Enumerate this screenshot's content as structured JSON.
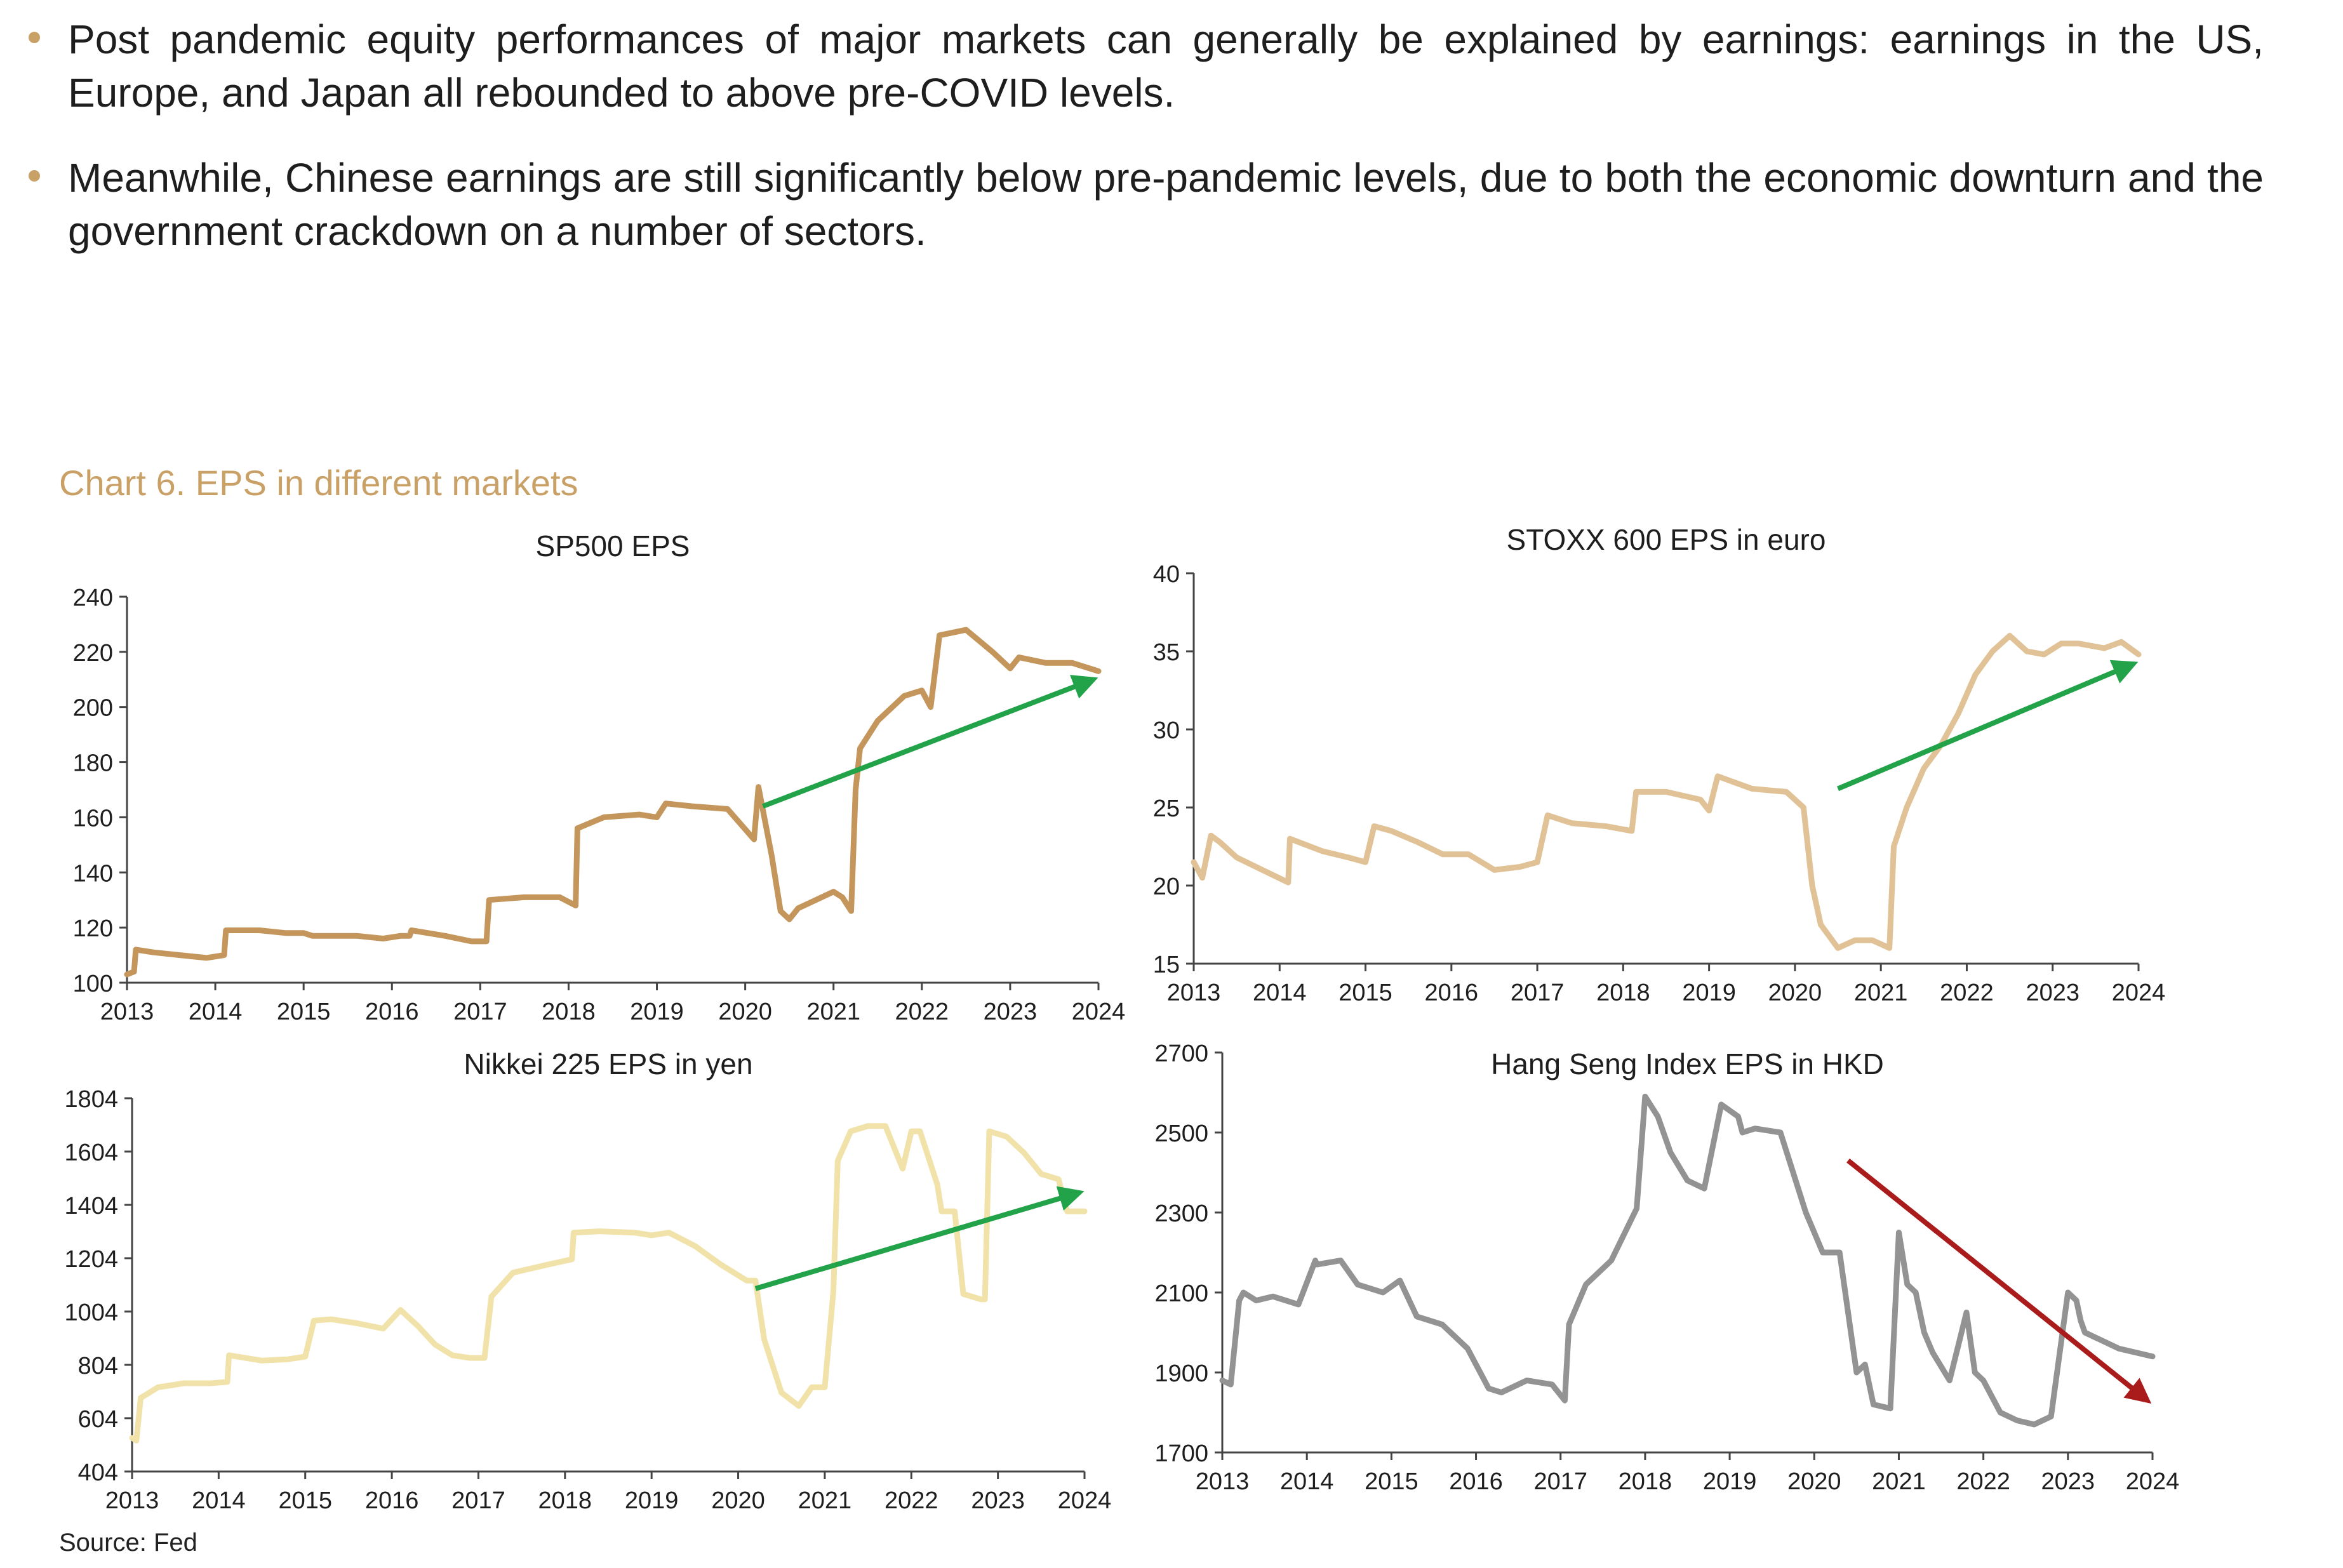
{
  "bullets": [
    "Post pandemic equity performances of major markets can generally be explained by earnings: earnings in the US, Europe, and Japan all rebounded to above pre-COVID levels.",
    "Meanwhile, Chinese earnings are still significantly below pre-pandemic levels, due to both the economic downturn and the government crackdown on a number of sectors."
  ],
  "chart_heading": "Chart 6. EPS in different markets",
  "source": "Source: Fed",
  "colors": {
    "gold": "#c9a066",
    "green": "#22a34a",
    "red": "#aa1b1b"
  },
  "chart_data": [
    {
      "type": "line",
      "title": "SP500 EPS",
      "ylim": [
        100,
        240
      ],
      "yticks": [
        100,
        120,
        140,
        160,
        180,
        200,
        220,
        240
      ],
      "xticks": [
        "2013",
        "2014",
        "2015",
        "2016",
        "2017",
        "2018",
        "2019",
        "2020",
        "2021",
        "2022",
        "2023",
        "2024"
      ],
      "xlim": [
        2013,
        2024
      ],
      "color": "#c4965c",
      "series": [
        {
          "name": "SP500 EPS",
          "x": [
            2013.0,
            2013.08,
            2013.1,
            2013.3,
            2013.6,
            2013.9,
            2014.1,
            2014.12,
            2014.5,
            2014.8,
            2015.0,
            2015.1,
            2015.3,
            2015.6,
            2015.9,
            2016.1,
            2016.2,
            2016.22,
            2016.6,
            2016.9,
            2017.07,
            2017.1,
            2017.5,
            2017.9,
            2018.08,
            2018.1,
            2018.4,
            2018.8,
            2019.0,
            2019.1,
            2019.4,
            2019.8,
            2020.1,
            2020.15,
            2020.3,
            2020.4,
            2020.5,
            2020.6,
            2020.8,
            2021.0,
            2021.1,
            2021.2,
            2021.25,
            2021.3,
            2021.5,
            2021.8,
            2022.0,
            2022.1,
            2022.2,
            2022.5,
            2022.8,
            2023.0,
            2023.1,
            2023.4,
            2023.7,
            2024.0
          ],
          "values": [
            103,
            104,
            112,
            111,
            110,
            109,
            110,
            119,
            119,
            118,
            118,
            117,
            117,
            117,
            116,
            117,
            117,
            119,
            117,
            115,
            115,
            130,
            131,
            131,
            128,
            156,
            160,
            161,
            160,
            165,
            164,
            163,
            152,
            171,
            146,
            126,
            123,
            127,
            130,
            133,
            131,
            126,
            170,
            185,
            195,
            204,
            206,
            200,
            226,
            228,
            220,
            214,
            218,
            216,
            216,
            213
          ]
        }
      ],
      "trend": {
        "x": [
          2020.2,
          2024.0
        ],
        "values": [
          164,
          210
        ],
        "color": "#22a34a"
      }
    },
    {
      "type": "line",
      "title": "STOXX 600 EPS in euro",
      "ylim": [
        15,
        40
      ],
      "yticks": [
        15,
        20,
        25,
        30,
        35,
        40
      ],
      "xticks": [
        "2013",
        "2014",
        "2015",
        "2016",
        "2017",
        "2018",
        "2019",
        "2020",
        "2021",
        "2022",
        "2023",
        "2024"
      ],
      "xlim": [
        2013,
        2024
      ],
      "color": "#e0c296",
      "series": [
        {
          "name": "STOXX 600 EPS",
          "x": [
            2013.0,
            2013.1,
            2013.2,
            2013.3,
            2013.5,
            2013.8,
            2014.1,
            2014.12,
            2014.5,
            2014.8,
            2015.0,
            2015.1,
            2015.3,
            2015.6,
            2015.9,
            2016.2,
            2016.5,
            2016.8,
            2017.0,
            2017.12,
            2017.4,
            2017.8,
            2018.1,
            2018.15,
            2018.5,
            2018.9,
            2019.0,
            2019.1,
            2019.5,
            2019.9,
            2020.1,
            2020.2,
            2020.3,
            2020.5,
            2020.7,
            2020.9,
            2021.1,
            2021.15,
            2021.3,
            2021.5,
            2021.7,
            2021.9,
            2022.1,
            2022.3,
            2022.5,
            2022.7,
            2022.9,
            2023.1,
            2023.3,
            2023.6,
            2023.8,
            2024.0
          ],
          "values": [
            21.5,
            20.5,
            23.2,
            22.8,
            21.8,
            21.0,
            20.2,
            23.0,
            22.2,
            21.8,
            21.5,
            23.8,
            23.5,
            22.8,
            22.0,
            22.0,
            21.0,
            21.2,
            21.5,
            24.5,
            24.0,
            23.8,
            23.5,
            26.0,
            26.0,
            25.5,
            24.8,
            27.0,
            26.2,
            26.0,
            25.0,
            20.0,
            17.5,
            16.0,
            16.5,
            16.5,
            16.0,
            22.5,
            25.0,
            27.5,
            29.0,
            31.0,
            33.5,
            35.0,
            36.0,
            35.0,
            34.8,
            35.5,
            35.5,
            35.2,
            35.6,
            34.8
          ]
        }
      ],
      "trend": {
        "x": [
          2020.5,
          2024.0
        ],
        "values": [
          26.2,
          34.2
        ],
        "color": "#22a34a"
      }
    },
    {
      "type": "line",
      "title": "Nikkei 225 EPS in yen",
      "ylim": [
        404,
        1804
      ],
      "yticks": [
        404,
        604,
        804,
        1004,
        1204,
        1404,
        1604,
        1804
      ],
      "xticks": [
        "2013",
        "2014",
        "2015",
        "2016",
        "2017",
        "2018",
        "2019",
        "2020",
        "2021",
        "2022",
        "2023",
        "2024"
      ],
      "xlim": [
        2013,
        2024
      ],
      "color": "#f1e2aa",
      "series": [
        {
          "name": "Nikkei 225 EPS",
          "x": [
            2013.0,
            2013.05,
            2013.1,
            2013.3,
            2013.6,
            2013.9,
            2014.1,
            2014.12,
            2014.5,
            2014.8,
            2015.0,
            2015.1,
            2015.3,
            2015.6,
            2015.9,
            2016.1,
            2016.3,
            2016.5,
            2016.7,
            2016.9,
            2017.07,
            2017.15,
            2017.4,
            2017.8,
            2018.08,
            2018.1,
            2018.4,
            2018.8,
            2019.0,
            2019.2,
            2019.5,
            2019.8,
            2020.1,
            2020.2,
            2020.3,
            2020.5,
            2020.7,
            2020.85,
            2021.0,
            2021.1,
            2021.15,
            2021.3,
            2021.5,
            2021.7,
            2021.9,
            2022.0,
            2022.1,
            2022.3,
            2022.35,
            2022.5,
            2022.6,
            2022.8,
            2022.85,
            2022.9,
            2023.1,
            2023.3,
            2023.5,
            2023.7,
            2023.8,
            2024.0
          ],
          "values": [
            530,
            520,
            680,
            720,
            735,
            735,
            740,
            840,
            820,
            825,
            835,
            970,
            975,
            960,
            940,
            1010,
            950,
            880,
            840,
            830,
            830,
            1060,
            1150,
            1180,
            1200,
            1300,
            1305,
            1300,
            1290,
            1300,
            1250,
            1180,
            1120,
            1120,
            900,
            700,
            650,
            720,
            720,
            1080,
            1570,
            1680,
            1700,
            1700,
            1540,
            1680,
            1680,
            1480,
            1380,
            1380,
            1070,
            1050,
            1050,
            1680,
            1660,
            1600,
            1520,
            1500,
            1380,
            1380
          ]
        }
      ],
      "trend": {
        "x": [
          2020.2,
          2024.0
        ],
        "values": [
          1090,
          1450
        ],
        "color": "#22a34a"
      }
    },
    {
      "type": "line",
      "title": "Hang Seng Index EPS in HKD",
      "ylim": [
        1700,
        2700
      ],
      "yticks": [
        1700,
        1900,
        2100,
        2300,
        2500,
        2700
      ],
      "xticks": [
        "2013",
        "2014",
        "2015",
        "2016",
        "2017",
        "2018",
        "2019",
        "2020",
        "2021",
        "2022",
        "2023",
        "2024"
      ],
      "xlim": [
        2013,
        2024
      ],
      "color": "#939393",
      "series": [
        {
          "name": "Hang Seng EPS",
          "x": [
            2013.0,
            2013.1,
            2013.2,
            2013.25,
            2013.4,
            2013.6,
            2013.9,
            2014.1,
            2014.12,
            2014.4,
            2014.6,
            2014.9,
            2015.1,
            2015.3,
            2015.6,
            2015.9,
            2016.1,
            2016.15,
            2016.3,
            2016.6,
            2016.9,
            2017.05,
            2017.1,
            2017.3,
            2017.6,
            2017.9,
            2018.0,
            2018.15,
            2018.3,
            2018.5,
            2018.7,
            2018.9,
            2019.1,
            2019.15,
            2019.3,
            2019.6,
            2019.9,
            2020.1,
            2020.3,
            2020.5,
            2020.6,
            2020.7,
            2020.9,
            2021.0,
            2021.1,
            2021.2,
            2021.3,
            2021.4,
            2021.6,
            2021.8,
            2021.9,
            2022.0,
            2022.2,
            2022.4,
            2022.6,
            2022.8,
            2023.0,
            2023.1,
            2023.15,
            2023.2,
            2023.4,
            2023.6,
            2023.8,
            2024.0
          ],
          "values": [
            1880,
            1870,
            2080,
            2100,
            2080,
            2090,
            2070,
            2180,
            2170,
            2180,
            2120,
            2100,
            2130,
            2040,
            2020,
            1960,
            1880,
            1860,
            1850,
            1880,
            1870,
            1830,
            2020,
            2120,
            2180,
            2310,
            2590,
            2540,
            2450,
            2380,
            2360,
            2570,
            2540,
            2500,
            2510,
            2500,
            2300,
            2200,
            2200,
            1900,
            1920,
            1820,
            1810,
            2250,
            2120,
            2100,
            2000,
            1950,
            1880,
            2050,
            1900,
            1880,
            1800,
            1780,
            1770,
            1790,
            2100,
            2080,
            2030,
            2000,
            1980,
            1960,
            1950,
            1940
          ]
        }
      ],
      "trend": {
        "x": [
          2020.4,
          2024.0
        ],
        "values": [
          2430,
          1830
        ],
        "color": "#aa1b1b"
      }
    }
  ]
}
